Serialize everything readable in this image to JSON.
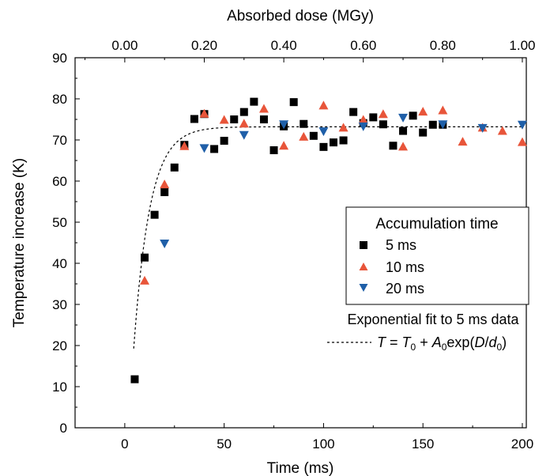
{
  "chart_data": {
    "type": "scatter",
    "title": "",
    "xlabel": "Time (ms)",
    "ylabel": "Temperature increase (K)",
    "x2label": "Absorbed dose (MGy)",
    "xlim": [
      -25,
      202
    ],
    "ylim": [
      0,
      90
    ],
    "x2lim": [
      -0.125,
      1.01
    ],
    "xticks": [
      0,
      50,
      100,
      150,
      200
    ],
    "yticks": [
      0,
      10,
      20,
      30,
      40,
      50,
      60,
      70,
      80,
      90
    ],
    "x2ticks": [
      "0.00",
      "0.20",
      "0.40",
      "0.60",
      "0.80",
      "1.00"
    ],
    "x2tick_values": [
      0,
      0.2,
      0.4,
      0.6,
      0.8,
      1.0
    ],
    "legend": {
      "title": "Accumulation time",
      "position": "right",
      "fit_title": "Exponential fit to 5 ms data",
      "fit_label": "T = T0 + A0exp(D/d0)"
    },
    "series": [
      {
        "name": "5 ms",
        "marker": "square",
        "color": "#000000",
        "x": [
          5,
          10,
          15,
          20,
          25,
          30,
          35,
          40,
          45,
          50,
          55,
          60,
          65,
          70,
          75,
          80,
          85,
          90,
          95,
          100,
          105,
          110,
          115,
          120,
          125,
          130,
          135,
          140,
          145,
          150,
          155,
          160
        ],
        "y": [
          11.8,
          41.4,
          51.8,
          57.3,
          63.3,
          68.8,
          75.1,
          76.3,
          67.8,
          69.8,
          75.0,
          76.8,
          79.3,
          75.0,
          67.5,
          73.3,
          79.2,
          73.9,
          71.0,
          68.3,
          69.4,
          69.9,
          76.8,
          74.1,
          75.5,
          73.8,
          68.6,
          72.2,
          75.9,
          71.8,
          73.7,
          73.7
        ]
      },
      {
        "name": "10 ms",
        "marker": "triangle-up",
        "color": "#e8553a",
        "x": [
          10,
          20,
          30,
          40,
          50,
          60,
          70,
          80,
          90,
          100,
          110,
          120,
          130,
          140,
          150,
          160,
          170,
          180,
          190,
          200
        ],
        "y": [
          35.8,
          59.2,
          68.5,
          76.4,
          74.9,
          74.0,
          77.6,
          68.6,
          70.8,
          78.4,
          73.0,
          74.9,
          76.3,
          68.4,
          76.9,
          77.2,
          69.6,
          73.0,
          72.2,
          69.5
        ]
      },
      {
        "name": "20 ms",
        "marker": "triangle-down",
        "color": "#1f5fa8",
        "x": [
          20,
          40,
          60,
          80,
          100,
          120,
          140,
          160,
          180,
          200
        ],
        "y": [
          44.8,
          68.0,
          71.2,
          73.8,
          72.1,
          73.3,
          75.4,
          73.8,
          72.9,
          73.7
        ]
      }
    ],
    "fit": {
      "name": "Exponential fit to 5 ms data",
      "style": "dashed",
      "color": "#000000",
      "T0": 73.2,
      "A0": -94,
      "tau": 8.1,
      "xrange": [
        4.5,
        200
      ]
    }
  }
}
